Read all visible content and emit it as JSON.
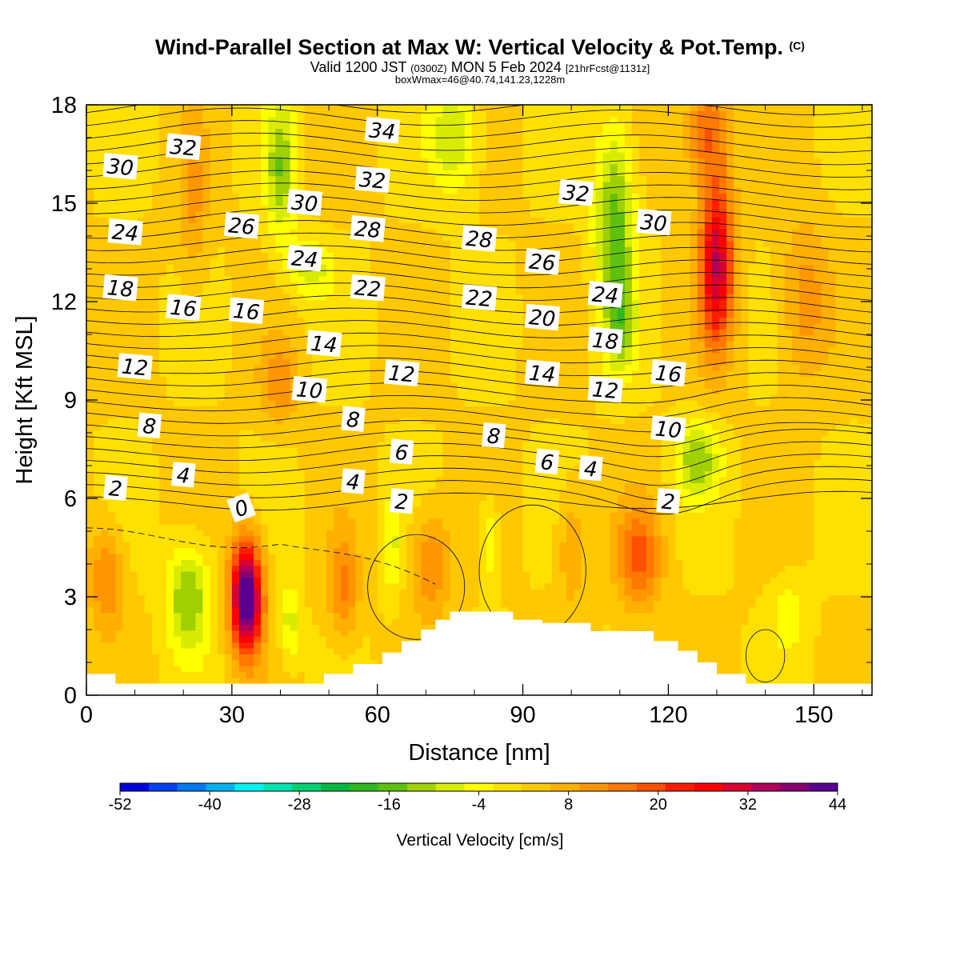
{
  "header": {
    "title": "Wind-Parallel Section at Max W: Vertical Velocity & Pot.Temp.",
    "title_mark": "(C)",
    "valid_a": "Valid 1200 JST",
    "valid_b": "(0300Z)",
    "valid_c": "MON 5 Feb 2024",
    "valid_d": "[21hrFcst@1131z]",
    "box_info": "boxWmax=46@40.74,141.23,1228m"
  },
  "chart_data": {
    "type": "heatmap",
    "xlabel": "Distance [nm]",
    "ylabel": "Height [Kft MSL]",
    "xlim": [
      0,
      162
    ],
    "ylim": [
      0,
      18
    ],
    "xticks": [
      0,
      30,
      60,
      90,
      120,
      150
    ],
    "yticks": [
      0,
      3,
      6,
      9,
      12,
      15,
      18
    ],
    "colorbar": {
      "label": "Vertical Velocity [cm/s]",
      "tick_labels": [
        -52,
        -40,
        -28,
        -16,
        -4,
        8,
        20,
        32,
        44
      ],
      "min": -52,
      "max": 44,
      "colors": [
        "#0000dc",
        "#0040f0",
        "#0078f0",
        "#00b0f0",
        "#00f0f0",
        "#00e0b0",
        "#00d070",
        "#00b840",
        "#30b820",
        "#60c010",
        "#a0d000",
        "#d8ec00",
        "#ffff00",
        "#ffe000",
        "#ffc800",
        "#ffb000",
        "#ff9600",
        "#ff7800",
        "#ff5000",
        "#ff1e00",
        "#ff0000",
        "#d80030",
        "#b0005a",
        "#880070",
        "#5a0090"
      ]
    },
    "theta_contour_labels": [
      {
        "x": 6,
        "y": 6.3,
        "text": "2"
      },
      {
        "x": 20,
        "y": 6.7,
        "text": "4"
      },
      {
        "x": 13,
        "y": 8.2,
        "text": "8"
      },
      {
        "x": 10,
        "y": 10.0,
        "text": "12"
      },
      {
        "x": 7,
        "y": 12.4,
        "text": "18"
      },
      {
        "x": 8,
        "y": 14.1,
        "text": "24"
      },
      {
        "x": 7,
        "y": 16.1,
        "text": "30"
      },
      {
        "x": 20,
        "y": 16.7,
        "text": "32"
      },
      {
        "x": 20,
        "y": 11.8,
        "text": "16"
      },
      {
        "x": 32,
        "y": 5.7,
        "text": "0"
      },
      {
        "x": 33,
        "y": 11.7,
        "text": "16"
      },
      {
        "x": 32,
        "y": 14.3,
        "text": "26"
      },
      {
        "x": 45,
        "y": 15.0,
        "text": "30"
      },
      {
        "x": 45,
        "y": 13.3,
        "text": "24"
      },
      {
        "x": 49,
        "y": 10.7,
        "text": "14"
      },
      {
        "x": 46,
        "y": 9.3,
        "text": "10"
      },
      {
        "x": 55,
        "y": 8.4,
        "text": "8"
      },
      {
        "x": 55,
        "y": 6.5,
        "text": "4"
      },
      {
        "x": 58,
        "y": 12.4,
        "text": "22"
      },
      {
        "x": 58,
        "y": 14.2,
        "text": "28"
      },
      {
        "x": 59,
        "y": 15.7,
        "text": "32"
      },
      {
        "x": 61,
        "y": 17.2,
        "text": "34"
      },
      {
        "x": 65,
        "y": 9.8,
        "text": "12"
      },
      {
        "x": 65,
        "y": 7.4,
        "text": "6"
      },
      {
        "x": 65,
        "y": 5.9,
        "text": "2"
      },
      {
        "x": 81,
        "y": 13.9,
        "text": "28"
      },
      {
        "x": 81,
        "y": 12.1,
        "text": "22"
      },
      {
        "x": 84,
        "y": 7.9,
        "text": "8"
      },
      {
        "x": 94,
        "y": 13.2,
        "text": "26"
      },
      {
        "x": 94,
        "y": 11.5,
        "text": "20"
      },
      {
        "x": 94,
        "y": 9.8,
        "text": "14"
      },
      {
        "x": 95,
        "y": 7.1,
        "text": "6"
      },
      {
        "x": 101,
        "y": 15.3,
        "text": "32"
      },
      {
        "x": 104,
        "y": 6.9,
        "text": "4"
      },
      {
        "x": 107,
        "y": 12.2,
        "text": "24"
      },
      {
        "x": 107,
        "y": 10.8,
        "text": "18"
      },
      {
        "x": 107,
        "y": 9.3,
        "text": "12"
      },
      {
        "x": 117,
        "y": 14.4,
        "text": "30"
      },
      {
        "x": 120,
        "y": 9.8,
        "text": "16"
      },
      {
        "x": 120,
        "y": 8.1,
        "text": "10"
      },
      {
        "x": 120,
        "y": 5.9,
        "text": "2"
      }
    ],
    "terrain": [
      [
        0,
        0.65
      ],
      [
        6,
        0.65
      ],
      [
        6,
        0.35
      ],
      [
        49,
        0.35
      ],
      [
        49,
        0.65
      ],
      [
        55,
        0.65
      ],
      [
        55,
        0.95
      ],
      [
        61,
        0.95
      ],
      [
        61,
        1.3
      ],
      [
        65,
        1.3
      ],
      [
        65,
        1.65
      ],
      [
        69,
        1.65
      ],
      [
        69,
        2.0
      ],
      [
        72,
        2.0
      ],
      [
        72,
        2.3
      ],
      [
        75,
        2.3
      ],
      [
        75,
        2.55
      ],
      [
        88,
        2.55
      ],
      [
        88,
        2.3
      ],
      [
        94,
        2.3
      ],
      [
        94,
        2.2
      ],
      [
        104,
        2.2
      ],
      [
        104,
        1.95
      ],
      [
        117,
        1.95
      ],
      [
        117,
        1.65
      ],
      [
        122,
        1.65
      ],
      [
        122,
        1.35
      ],
      [
        126,
        1.35
      ],
      [
        126,
        1.0
      ],
      [
        130,
        1.0
      ],
      [
        130,
        0.65
      ],
      [
        136,
        0.65
      ],
      [
        136,
        0.35
      ],
      [
        162,
        0.35
      ]
    ],
    "vv_features": [
      {
        "x": 33,
        "y": 3.0,
        "sx": 3.2,
        "sy": 1.7,
        "value": 46
      },
      {
        "x": 21,
        "y": 3.0,
        "sx": 4.5,
        "sy": 1.6,
        "value": -16
      },
      {
        "x": 4,
        "y": 3.6,
        "sx": 3.5,
        "sy": 1.6,
        "value": 12
      },
      {
        "x": 42,
        "y": 2.2,
        "sx": 2.0,
        "sy": 1.2,
        "value": -10
      },
      {
        "x": 53,
        "y": 3.3,
        "sx": 3.0,
        "sy": 1.6,
        "value": 12
      },
      {
        "x": 71,
        "y": 4.0,
        "sx": 4.0,
        "sy": 1.6,
        "value": 12
      },
      {
        "x": 83,
        "y": 4.7,
        "sx": 2.0,
        "sy": 1.4,
        "value": -8
      },
      {
        "x": 114,
        "y": 4.2,
        "sx": 4.5,
        "sy": 1.5,
        "value": 16
      },
      {
        "x": 130,
        "y": 13.2,
        "sx": 3.5,
        "sy": 2.6,
        "value": 30
      },
      {
        "x": 128,
        "y": 17.2,
        "sx": 4.5,
        "sy": 1.5,
        "value": 16
      },
      {
        "x": 109,
        "y": 14.5,
        "sx": 4.0,
        "sy": 3.0,
        "value": -18
      },
      {
        "x": 110,
        "y": 11.2,
        "sx": 3.0,
        "sy": 1.5,
        "value": -12
      },
      {
        "x": 76,
        "y": 17.0,
        "sx": 5.0,
        "sy": 1.7,
        "value": -12
      },
      {
        "x": 40,
        "y": 16.0,
        "sx": 3.0,
        "sy": 2.2,
        "value": -14
      },
      {
        "x": 46,
        "y": 13.0,
        "sx": 4.5,
        "sy": 0.9,
        "value": -10
      },
      {
        "x": 126,
        "y": 7.2,
        "sx": 4.5,
        "sy": 1.1,
        "value": -14
      },
      {
        "x": 40,
        "y": 9.5,
        "sx": 4.0,
        "sy": 1.2,
        "value": 10
      },
      {
        "x": 148,
        "y": 12.0,
        "sx": 5.0,
        "sy": 2.4,
        "value": 10
      },
      {
        "x": 22,
        "y": 15.0,
        "sx": 3.0,
        "sy": 2.5,
        "value": 8
      },
      {
        "x": 100,
        "y": 4.5,
        "sx": 3.0,
        "sy": 1.8,
        "value": 8
      },
      {
        "x": 145,
        "y": 2.5,
        "sx": 4.0,
        "sy": 1.2,
        "value": -6
      },
      {
        "x": 63,
        "y": 4.5,
        "sx": 2.0,
        "sy": 1.5,
        "value": -8
      }
    ]
  }
}
